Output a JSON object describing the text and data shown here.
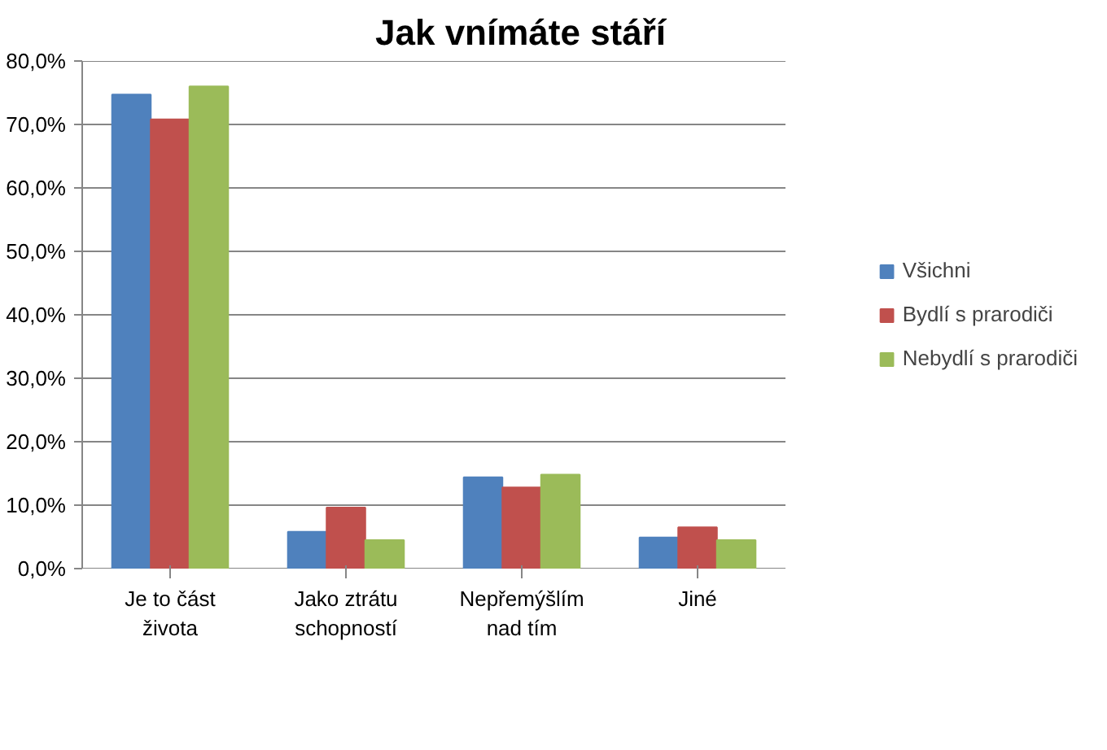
{
  "chart_data": {
    "type": "bar",
    "title": "Jak vnímáte stáří",
    "categories": [
      "Je to část\nživota",
      "Jako ztrátu\nschopností",
      "Nepřemýšlím\nnad tím",
      "Jiné"
    ],
    "series": [
      {
        "name": "Všichni",
        "color": "#4f81bd",
        "values": [
          74.7,
          5.8,
          14.4,
          4.9
        ]
      },
      {
        "name": "Bydlí s prarodiči",
        "color": "#c0504d",
        "values": [
          70.8,
          9.6,
          12.8,
          6.5
        ]
      },
      {
        "name": "Nebydlí s prarodiči",
        "color": "#9bbb59",
        "values": [
          76.0,
          4.5,
          14.8,
          4.5
        ]
      }
    ],
    "ylim": [
      0,
      80
    ],
    "yticks": [
      {
        "value": 0,
        "label": "0,0%"
      },
      {
        "value": 10,
        "label": "10,0%"
      },
      {
        "value": 20,
        "label": "20,0%"
      },
      {
        "value": 30,
        "label": "30,0%"
      },
      {
        "value": 40,
        "label": "40,0%"
      },
      {
        "value": 50,
        "label": "50,0%"
      },
      {
        "value": 60,
        "label": "60,0%"
      },
      {
        "value": 70,
        "label": "70,0%"
      },
      {
        "value": 80,
        "label": "80,0%"
      }
    ],
    "grid": "y",
    "legend": "right"
  }
}
